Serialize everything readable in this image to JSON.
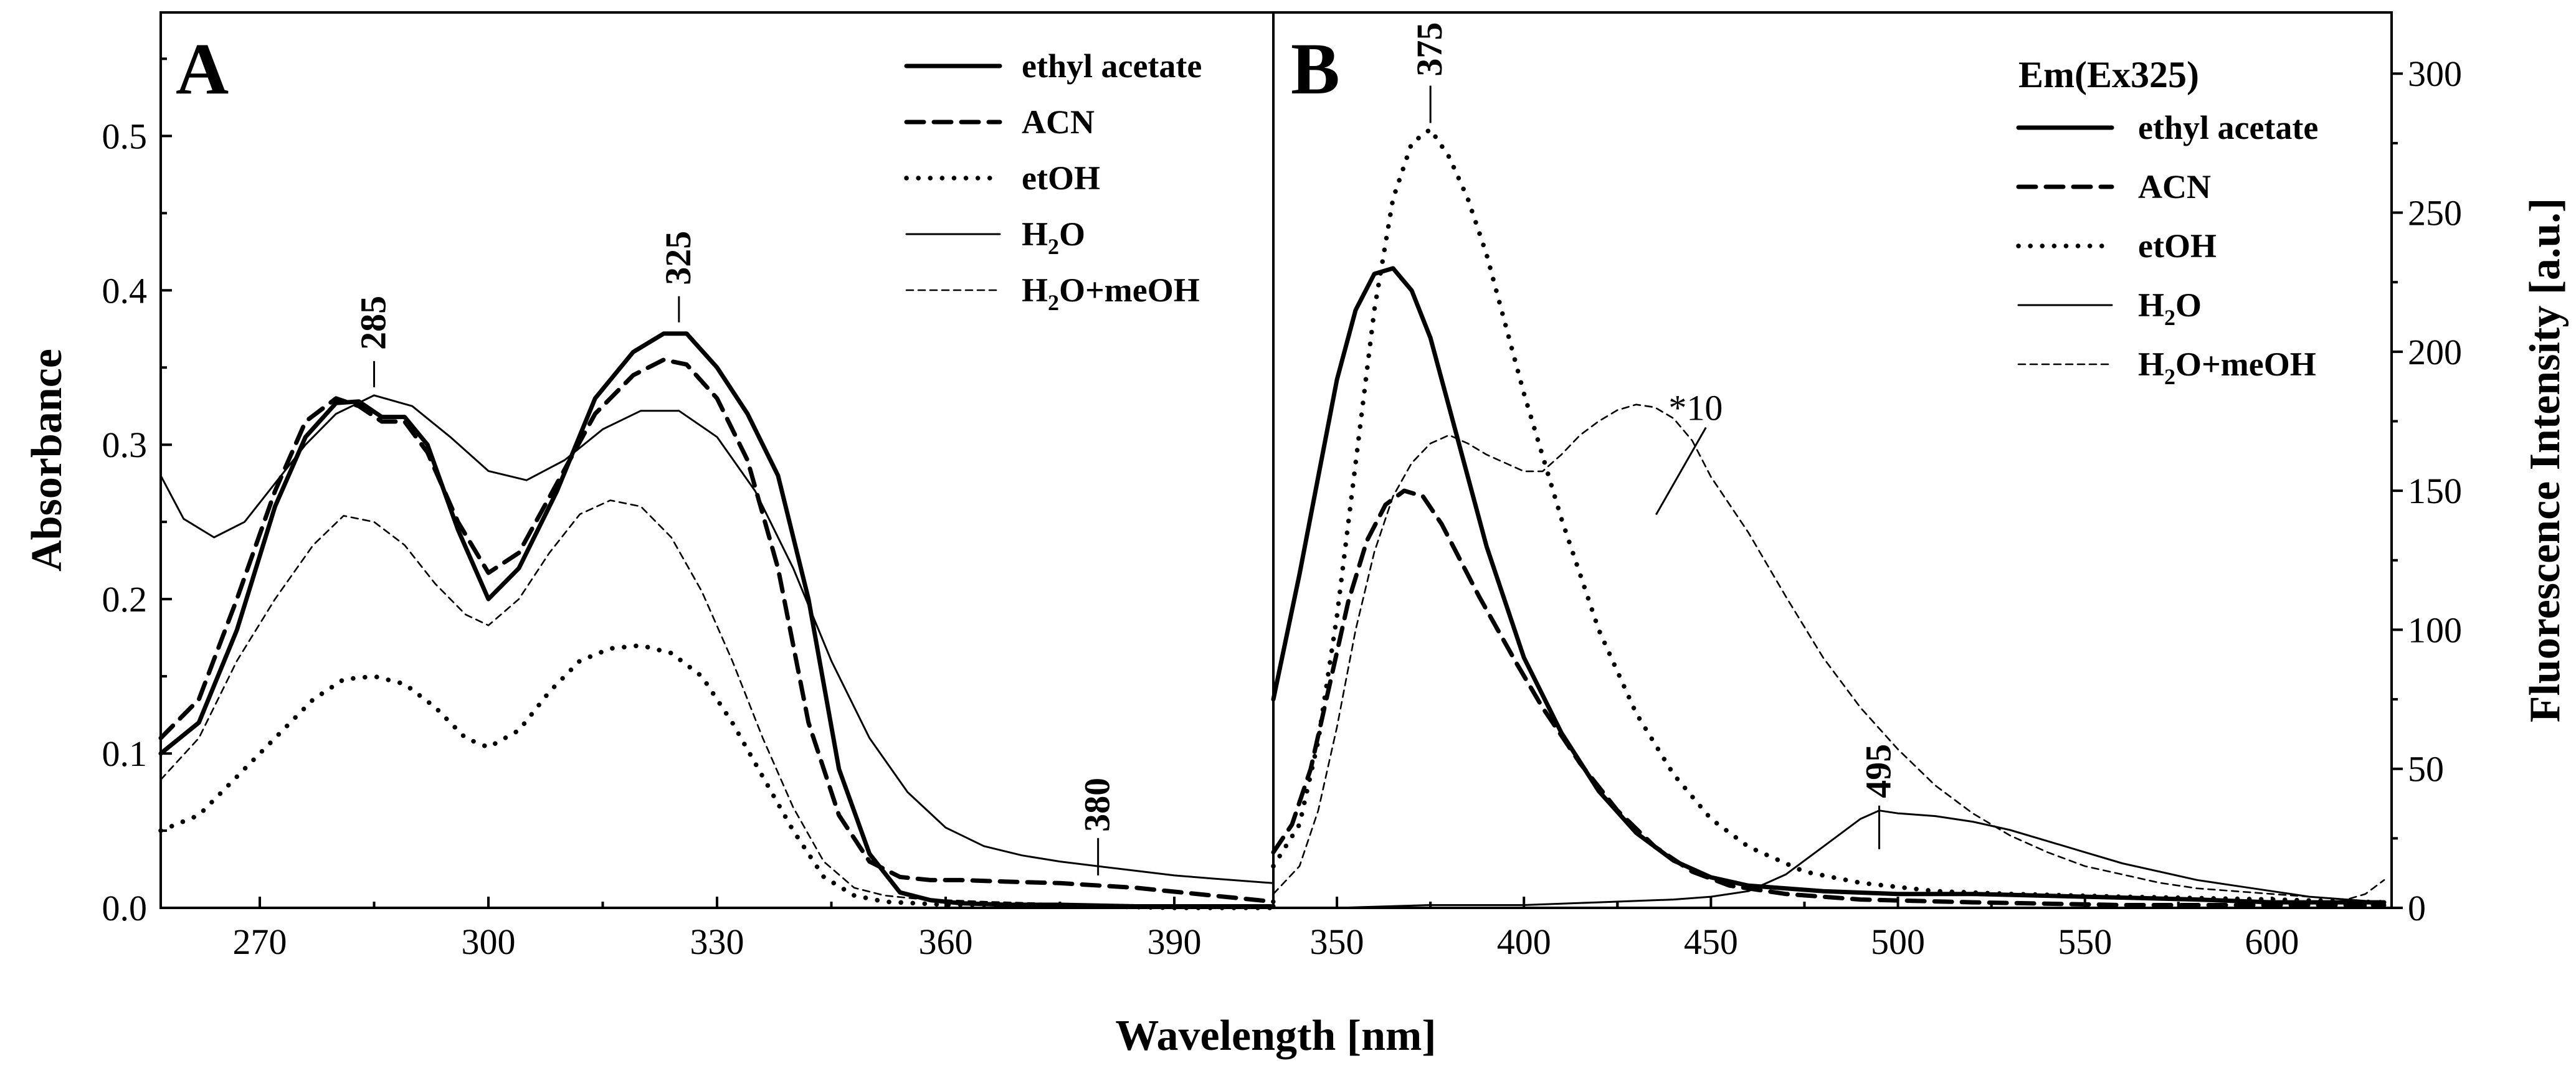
{
  "chart_data": [
    {
      "type": "line",
      "panel": "A",
      "xlabel": "Wavelength [nm]",
      "ylabel": "Absorbance",
      "xlim": [
        257,
        403
      ],
      "ylim": [
        0,
        0.58
      ],
      "xticks": [
        270,
        300,
        330,
        360,
        390
      ],
      "xtick_labels": [
        "270",
        "300",
        "330",
        "360",
        "390"
      ],
      "yticks": [
        0.0,
        0.1,
        0.2,
        0.3,
        0.4,
        0.5
      ],
      "ytick_labels": [
        "0.0",
        "0.1",
        "0.2",
        "0.3",
        "0.4",
        "0.5"
      ],
      "legend_position": "top-right",
      "series": [
        {
          "name": "ethyl acetate",
          "label_main": "ethyl acetate",
          "label_sub": "",
          "label_tail": "",
          "style": "thick-solid",
          "x": [
            257,
            262,
            267,
            272,
            276,
            280,
            283,
            286,
            289,
            292,
            296,
            300,
            304,
            309,
            314,
            319,
            323,
            326,
            330,
            334,
            338,
            342,
            346,
            350,
            354,
            358,
            362,
            368,
            375,
            385,
            395,
            403
          ],
          "y": [
            0.1,
            0.12,
            0.18,
            0.26,
            0.305,
            0.327,
            0.328,
            0.318,
            0.318,
            0.3,
            0.245,
            0.2,
            0.22,
            0.27,
            0.33,
            0.36,
            0.372,
            0.372,
            0.35,
            0.32,
            0.28,
            0.2,
            0.09,
            0.035,
            0.01,
            0.005,
            0.003,
            0.002,
            0.002,
            0.001,
            0.001,
            0.001
          ]
        },
        {
          "name": "ACN",
          "label_main": "ACN",
          "label_sub": "",
          "label_tail": "",
          "style": "thick-dashed",
          "x": [
            257,
            262,
            267,
            272,
            276,
            280,
            283,
            286,
            289,
            292,
            296,
            300,
            304,
            309,
            314,
            319,
            323,
            326,
            330,
            334,
            338,
            342,
            346,
            350,
            354,
            358,
            362,
            368,
            375,
            385,
            395,
            403
          ],
          "y": [
            0.11,
            0.135,
            0.2,
            0.27,
            0.315,
            0.33,
            0.325,
            0.315,
            0.315,
            0.295,
            0.25,
            0.217,
            0.23,
            0.275,
            0.32,
            0.345,
            0.355,
            0.352,
            0.33,
            0.29,
            0.22,
            0.12,
            0.06,
            0.03,
            0.02,
            0.018,
            0.018,
            0.017,
            0.016,
            0.013,
            0.008,
            0.004
          ]
        },
        {
          "name": "etOH",
          "label_main": "etOH",
          "label_sub": "",
          "label_tail": "",
          "style": "thick-dotted",
          "x": [
            257,
            262,
            267,
            272,
            277,
            281,
            285,
            289,
            293,
            297,
            300,
            304,
            308,
            312,
            316,
            320,
            324,
            328,
            332,
            336,
            340,
            344,
            348,
            352,
            356,
            360,
            365,
            372,
            380,
            390,
            403
          ],
          "y": [
            0.05,
            0.06,
            0.085,
            0.11,
            0.135,
            0.148,
            0.15,
            0.145,
            0.13,
            0.11,
            0.104,
            0.115,
            0.14,
            0.16,
            0.168,
            0.17,
            0.165,
            0.15,
            0.12,
            0.085,
            0.05,
            0.02,
            0.008,
            0.004,
            0.003,
            0.002,
            0.002,
            0.001,
            0.001,
            0.0,
            0.0
          ]
        },
        {
          "name": "H2O",
          "label_main": "H",
          "label_sub": "2",
          "label_tail": "O",
          "style": "thin-solid",
          "x": [
            257,
            260,
            264,
            268,
            272,
            276,
            280,
            285,
            290,
            295,
            300,
            305,
            310,
            315,
            320,
            325,
            330,
            335,
            340,
            345,
            350,
            355,
            360,
            365,
            370,
            375,
            380,
            385,
            390,
            395,
            403
          ],
          "y": [
            0.28,
            0.252,
            0.24,
            0.25,
            0.275,
            0.3,
            0.32,
            0.332,
            0.325,
            0.305,
            0.283,
            0.277,
            0.29,
            0.31,
            0.322,
            0.322,
            0.305,
            0.27,
            0.22,
            0.16,
            0.11,
            0.075,
            0.052,
            0.04,
            0.034,
            0.03,
            0.027,
            0.024,
            0.021,
            0.019,
            0.016
          ]
        },
        {
          "name": "H2O+meOH",
          "label_main": "H",
          "label_sub": "2",
          "label_tail": "O+meOH",
          "style": "thin-dashed",
          "x": [
            257,
            262,
            267,
            272,
            277,
            281,
            285,
            289,
            293,
            297,
            300,
            304,
            308,
            312,
            316,
            320,
            324,
            328,
            332,
            336,
            340,
            344,
            348,
            352,
            356,
            360,
            365,
            372,
            380,
            390,
            403
          ],
          "y": [
            0.083,
            0.11,
            0.16,
            0.2,
            0.235,
            0.254,
            0.25,
            0.235,
            0.21,
            0.19,
            0.183,
            0.2,
            0.23,
            0.255,
            0.264,
            0.26,
            0.24,
            0.205,
            0.16,
            0.11,
            0.065,
            0.03,
            0.013,
            0.008,
            0.006,
            0.005,
            0.004,
            0.003,
            0.002,
            0.001,
            0.0
          ]
        }
      ],
      "annotations": [
        {
          "text": "285",
          "x": 285,
          "y": 0.33
        },
        {
          "text": "325",
          "x": 325,
          "y": 0.372
        },
        {
          "text": "380",
          "x": 380,
          "y": 0.017
        }
      ]
    },
    {
      "type": "line",
      "panel": "B",
      "xlabel": "Wavelength [nm]",
      "ylabel": "Fluorescence Intensity [a.u.]",
      "xlim": [
        333,
        632
      ],
      "ylim": [
        0,
        322
      ],
      "xticks": [
        350,
        400,
        450,
        500,
        550,
        600
      ],
      "xtick_labels": [
        "350",
        "400",
        "450",
        "500",
        "550",
        "600"
      ],
      "yticks": [
        0,
        50,
        100,
        150,
        200,
        250,
        300
      ],
      "ytick_labels": [
        "0",
        "50",
        "100",
        "150",
        "200",
        "250",
        "300"
      ],
      "legend_title": "Em(Ex325)",
      "legend_position": "top-right",
      "series": [
        {
          "name": "ethyl acetate",
          "label_main": "ethyl acetate",
          "label_sub": "",
          "label_tail": "",
          "style": "thick-solid",
          "x": [
            333,
            340,
            345,
            350,
            355,
            360,
            365,
            370,
            375,
            380,
            385,
            390,
            395,
            400,
            410,
            420,
            430,
            440,
            450,
            460,
            480,
            500,
            520,
            550,
            580,
            600,
            630
          ],
          "y": [
            75,
            120,
            155,
            190,
            215,
            228,
            230,
            222,
            205,
            180,
            155,
            130,
            110,
            90,
            63,
            42,
            27,
            17,
            11,
            8,
            6,
            5,
            5,
            4,
            3,
            2,
            2
          ]
        },
        {
          "name": "ACN",
          "label_main": "ACN",
          "label_sub": "",
          "label_tail": "",
          "style": "thick-dashed",
          "x": [
            333,
            338,
            343,
            348,
            353,
            358,
            363,
            368,
            373,
            378,
            383,
            388,
            393,
            398,
            405,
            415,
            425,
            435,
            445,
            455,
            470,
            490,
            520,
            560,
            600,
            630
          ],
          "y": [
            20,
            30,
            50,
            80,
            110,
            132,
            145,
            150,
            148,
            138,
            125,
            112,
            100,
            88,
            72,
            52,
            35,
            22,
            13,
            8,
            5,
            3,
            2,
            1,
            1,
            1
          ]
        },
        {
          "name": "etOH",
          "label_main": "etOH",
          "label_sub": "",
          "label_tail": "",
          "style": "thick-dotted",
          "x": [
            333,
            340,
            345,
            350,
            355,
            360,
            365,
            370,
            375,
            380,
            385,
            390,
            395,
            400,
            410,
            420,
            430,
            440,
            450,
            460,
            475,
            490,
            510,
            530,
            560,
            600,
            630
          ],
          "y": [
            15,
            30,
            60,
            105,
            160,
            215,
            255,
            275,
            280,
            270,
            255,
            235,
            210,
            185,
            140,
            100,
            70,
            48,
            32,
            22,
            13,
            9,
            6,
            5,
            4,
            3,
            2
          ]
        },
        {
          "name": "H2O",
          "label_main": "H",
          "label_sub": "2",
          "label_tail": "O",
          "style": "thin-solid",
          "x": [
            333,
            350,
            375,
            400,
            420,
            440,
            450,
            460,
            470,
            480,
            490,
            495,
            500,
            510,
            520,
            530,
            540,
            550,
            560,
            570,
            580,
            590,
            600,
            610,
            620,
            630
          ],
          "y": [
            0,
            0,
            1,
            1,
            2,
            3,
            4,
            6,
            12,
            22,
            32,
            35,
            34,
            33,
            31,
            28,
            24,
            20,
            16,
            13,
            10,
            8,
            6,
            4,
            3,
            2
          ]
        },
        {
          "name": "H2O+meOH",
          "label_main": "H",
          "label_sub": "2",
          "label_tail": "O+meOH",
          "style": "thin-dashed",
          "x": [
            333,
            340,
            345,
            350,
            355,
            360,
            365,
            370,
            375,
            380,
            385,
            390,
            395,
            400,
            405,
            410,
            415,
            420,
            425,
            430,
            435,
            440,
            445,
            450,
            460,
            470,
            480,
            490,
            500,
            510,
            520,
            530,
            540,
            550,
            560,
            570,
            580,
            590,
            600,
            610,
            620,
            625,
            630
          ],
          "y": [
            5,
            15,
            35,
            65,
            100,
            128,
            148,
            160,
            167,
            170,
            167,
            163,
            160,
            157,
            157,
            163,
            170,
            175,
            179,
            181,
            180,
            176,
            168,
            155,
            135,
            112,
            90,
            72,
            57,
            44,
            34,
            26,
            20,
            15,
            12,
            9,
            7,
            6,
            5,
            4,
            3,
            5,
            10
          ]
        }
      ],
      "annotations": [
        {
          "text": "375",
          "x": 375,
          "y": 280
        },
        {
          "text": "495",
          "x": 495,
          "y": 35
        },
        {
          "text": "*10",
          "x": 437,
          "y": 175
        }
      ]
    }
  ]
}
